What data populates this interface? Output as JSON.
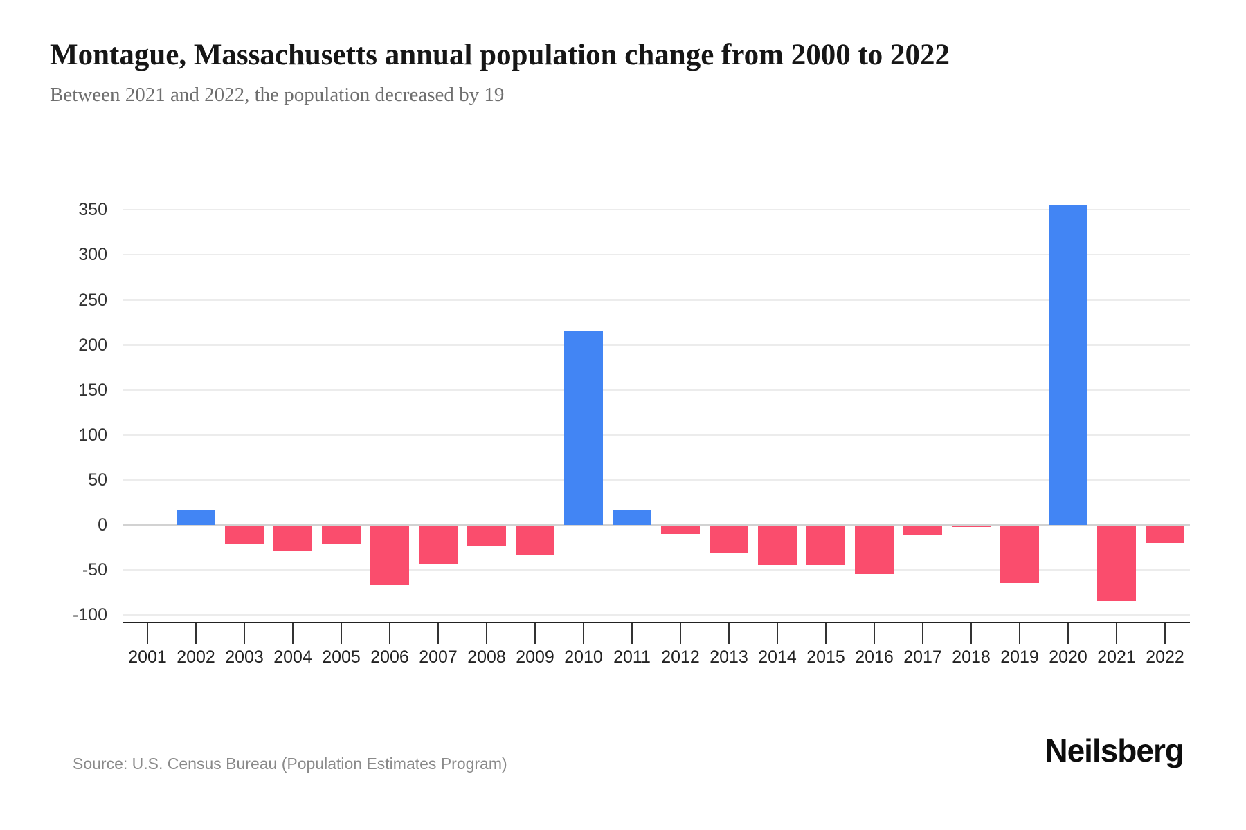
{
  "header": {
    "title": "Montague, Massachusetts annual population change from 2000 to 2022",
    "subtitle": "Between 2021 and 2022, the population decreased by 19"
  },
  "footer": {
    "source": "Source: U.S. Census Bureau (Population Estimates Program)",
    "brand": "Neilsberg"
  },
  "chart_data": {
    "type": "bar",
    "title": "Montague, Massachusetts annual population change from 2000 to 2022",
    "categories": [
      "2001",
      "2002",
      "2003",
      "2004",
      "2005",
      "2006",
      "2007",
      "2008",
      "2009",
      "2010",
      "2011",
      "2012",
      "2013",
      "2014",
      "2015",
      "2016",
      "2017",
      "2018",
      "2019",
      "2020",
      "2021",
      "2022"
    ],
    "values": [
      0,
      17,
      -21,
      -28,
      -21,
      -66,
      -42,
      -23,
      -33,
      215,
      16,
      -9,
      -31,
      -44,
      -44,
      -54,
      -11,
      -1,
      -64,
      355,
      -84,
      -19
    ],
    "xlabel": "",
    "ylabel": "",
    "ylim": [
      -100,
      350
    ],
    "yticks": [
      350,
      300,
      250,
      200,
      150,
      100,
      50,
      0,
      -50,
      -100
    ],
    "grid": true,
    "legend": false,
    "colors": {
      "positive_bar": "#4285f4",
      "negative_bar": "#fa4d6d"
    }
  }
}
